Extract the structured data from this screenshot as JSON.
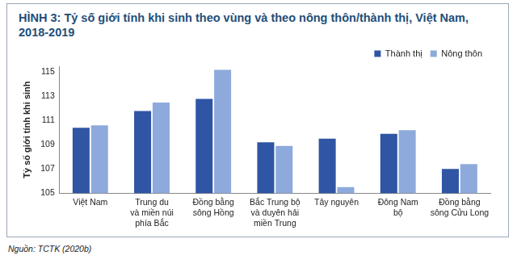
{
  "chart_data": {
    "type": "bar",
    "title": "HÌNH 3: Tỷ số giới tính khi sinh theo vùng và theo nông thôn/thành thị, Việt Nam, 2018-2019",
    "y_label": "Tỷ số giới tính khi sinh",
    "source": "Nguồn: TCTK (2020b)",
    "categories": [
      "Việt Nam",
      "Trung du\nvà miền núi\nphía Bắc",
      "Đồng bằng\nsông Hồng",
      "Bắc Trung bộ\nvà duyên hải\nmiền Trung",
      "Tây nguyên",
      "Đông Nam\nbộ",
      "Đồng bằng\nsông Cửu Long"
    ],
    "series": [
      {
        "name": "Thành thị",
        "color": "#2f55a4",
        "values": [
          110.4,
          111.8,
          112.8,
          109.2,
          109.5,
          109.9,
          107.0
        ]
      },
      {
        "name": "Nông thôn",
        "color": "#8eaadc",
        "values": [
          110.6,
          112.5,
          115.2,
          108.9,
          105.5,
          110.2,
          107.4
        ]
      }
    ],
    "ylim": [
      105,
      115.5
    ],
    "yticks": [
      105,
      107,
      109,
      111,
      113,
      115
    ],
    "grid": false,
    "legend": "top-right"
  }
}
